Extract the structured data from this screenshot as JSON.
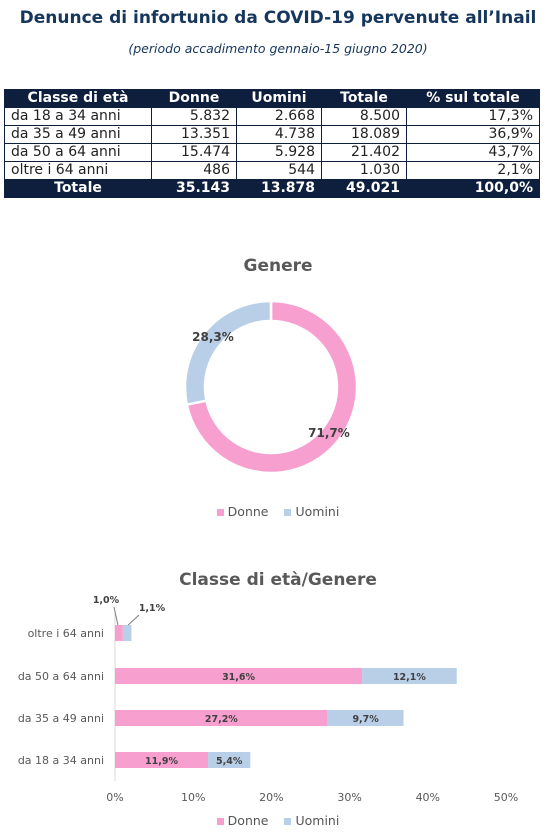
{
  "header": {
    "title": "Denunce di infortunio da COVID-19 pervenute all’Inail",
    "subtitle": "(periodo accadimento gennaio-15 giugno 2020)"
  },
  "colors": {
    "donne": "#f79fcf",
    "uomini": "#b8cfe7",
    "navy": "#0e1f3d"
  },
  "table": {
    "headers": [
      "Classe di età",
      "Donne",
      "Uomini",
      "Totale",
      "% sul totale"
    ],
    "rows": [
      [
        "da 18 a 34 anni",
        "5.832",
        "2.668",
        "8.500",
        "17,3%"
      ],
      [
        "da 35 a 49 anni",
        "13.351",
        "4.738",
        "18.089",
        "36,9%"
      ],
      [
        "da 50 a 64 anni",
        "15.474",
        "5.928",
        "21.402",
        "43,7%"
      ],
      [
        "oltre i 64 anni",
        "486",
        "544",
        "1.030",
        "2,1%"
      ]
    ],
    "total": [
      "Totale",
      "35.143",
      "13.878",
      "49.021",
      "100,0%"
    ]
  },
  "chart_data": [
    {
      "type": "pie",
      "title": "Genere",
      "labels": [
        "Donne",
        "Uomini"
      ],
      "values": [
        71.7,
        28.3
      ],
      "value_labels": [
        "71,7%",
        "28,3%"
      ],
      "legend": "bottom"
    },
    {
      "type": "bar",
      "orientation": "horizontal",
      "stacked": true,
      "title": "Classe di età/Genere",
      "categories": [
        "oltre i 64 anni",
        "da 50 a 64 anni",
        "da 35 a 49 anni",
        "da 18 a 34 anni"
      ],
      "series": [
        {
          "name": "Donne",
          "values": [
            1.0,
            31.6,
            27.2,
            11.9
          ],
          "value_labels": [
            "1,0%",
            "31,6%",
            "27,2%",
            "11,9%"
          ]
        },
        {
          "name": "Uomini",
          "values": [
            1.1,
            12.1,
            9.7,
            5.4
          ],
          "value_labels": [
            "1,1%",
            "12,1%",
            "9,7%",
            "5,4%"
          ]
        }
      ],
      "xlim": [
        0,
        50
      ],
      "xticks": [
        "0%",
        "10%",
        "20%",
        "30%",
        "40%",
        "50%"
      ],
      "legend": "bottom",
      "grid": false
    }
  ]
}
